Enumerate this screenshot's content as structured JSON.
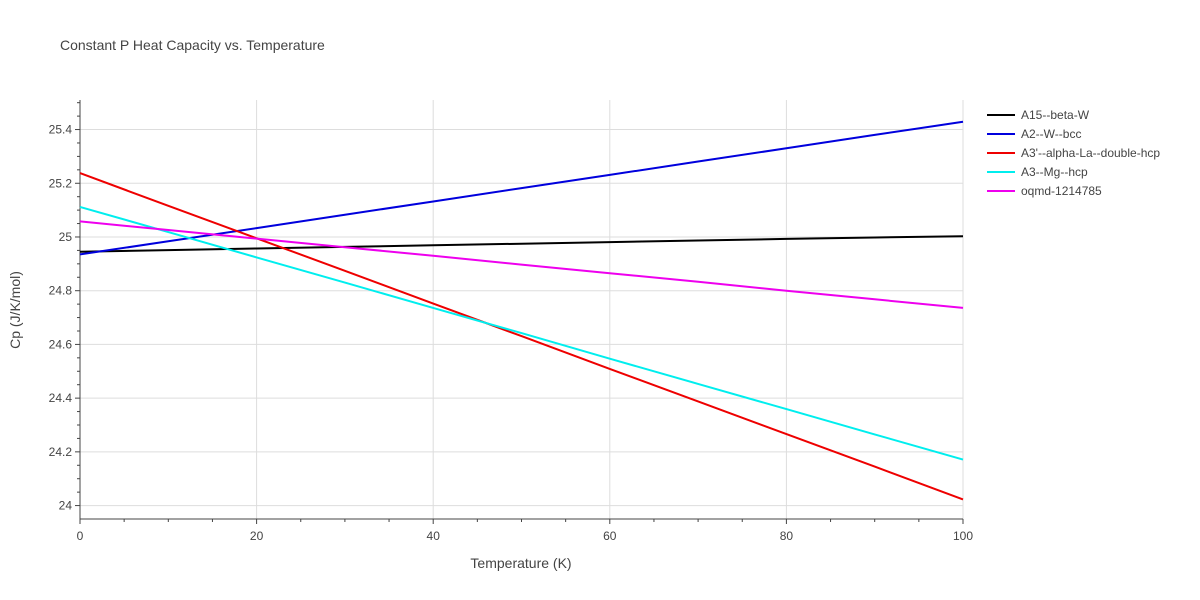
{
  "chart_data": {
    "type": "line",
    "title": "Constant P Heat Capacity vs. Temperature",
    "xlabel": "Temperature (K)",
    "ylabel": "Cp (J/K/mol)",
    "xlim": [
      0,
      100
    ],
    "ylim": [
      23.95,
      25.51
    ],
    "xticks": [
      0,
      20,
      40,
      60,
      80,
      100
    ],
    "yticks": [
      24,
      24.2,
      24.4,
      24.6,
      24.8,
      25,
      25.2,
      25.4
    ],
    "xtick_labels": [
      "0",
      "20",
      "40",
      "60",
      "80",
      "100"
    ],
    "ytick_labels": [
      "24",
      "24.2",
      "24.4",
      "24.6",
      "24.8",
      "25",
      "25.2",
      "25.4"
    ],
    "grid": true,
    "legend_position": "top-right",
    "x": [
      0,
      10,
      20,
      30,
      40,
      50,
      60,
      70,
      80,
      90,
      100
    ],
    "series": [
      {
        "name": "A15--beta-W",
        "color": "#000000",
        "values": [
          24.945,
          24.951,
          24.957,
          24.963,
          24.969,
          24.975,
          24.981,
          24.987,
          24.993,
          24.998,
          25.003
        ]
      },
      {
        "name": "A2--W--bcc",
        "color": "#0000dd",
        "values": [
          24.935,
          24.984,
          25.033,
          25.083,
          25.132,
          25.182,
          25.231,
          25.281,
          25.33,
          25.38,
          25.429
        ]
      },
      {
        "name": "A3'--alpha-La--double-hcp",
        "color": "#ee0000",
        "values": [
          25.238,
          25.116,
          24.995,
          24.874,
          24.752,
          24.631,
          24.509,
          24.388,
          24.266,
          24.145,
          24.023
        ]
      },
      {
        "name": "A3--Mg--hcp",
        "color": "#00eeee",
        "values": [
          25.112,
          25.018,
          24.924,
          24.83,
          24.736,
          24.642,
          24.547,
          24.453,
          24.359,
          24.265,
          24.171
        ]
      },
      {
        "name": "oqmd-1214785",
        "color": "#ee00ee",
        "values": [
          25.058,
          25.026,
          24.994,
          24.962,
          24.93,
          24.897,
          24.865,
          24.833,
          24.8,
          24.768,
          24.736
        ]
      }
    ]
  }
}
